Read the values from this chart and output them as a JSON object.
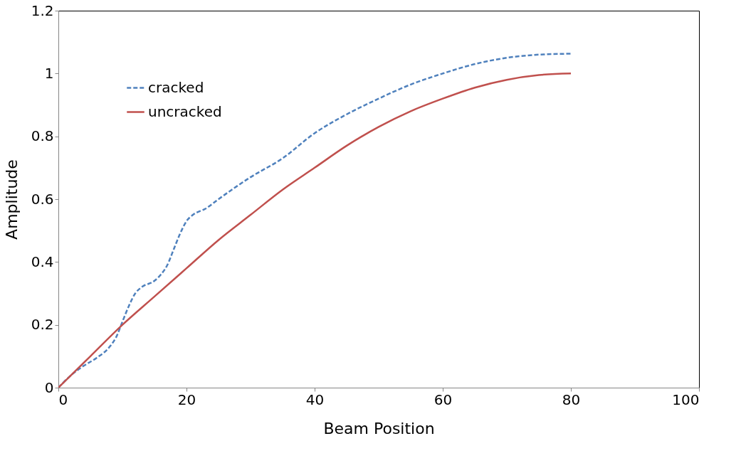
{
  "chart_data": {
    "type": "line",
    "xlabel": "Beam Position",
    "ylabel": "Amplitude",
    "xlim": [
      0,
      100
    ],
    "xticks": [
      0,
      20,
      40,
      60,
      80,
      100
    ],
    "ylim": [
      0,
      1.2
    ],
    "yticks": [
      {
        "value": 0,
        "label": "0"
      },
      0.2,
      0.4,
      0.6,
      0.8,
      {
        "value": 1,
        "label": "1"
      },
      1.2
    ],
    "grid": false,
    "legend": "top left",
    "marker": "none",
    "series": [
      {
        "name": "cracked",
        "color": "#4f81bd",
        "line_style": "dashed",
        "x": [
          0,
          2,
          4,
          6,
          8,
          9,
          10,
          11,
          12,
          13,
          15,
          16,
          17,
          18,
          19,
          20,
          21,
          23,
          25,
          30,
          35,
          40,
          45,
          50,
          55,
          60,
          65,
          70,
          75,
          80
        ],
        "values": [
          0,
          0.04,
          0.07,
          0.095,
          0.13,
          0.16,
          0.21,
          0.26,
          0.3,
          0.32,
          0.34,
          0.36,
          0.39,
          0.44,
          0.49,
          0.53,
          0.55,
          0.57,
          0.6,
          0.67,
          0.73,
          0.81,
          0.87,
          0.92,
          0.965,
          1.0,
          1.03,
          1.05,
          1.06,
          1.063
        ]
      },
      {
        "name": "uncracked",
        "color": "#c0504d",
        "line_style": "solid",
        "x": [
          0,
          5,
          10,
          15,
          20,
          25,
          30,
          35,
          40,
          45,
          50,
          55,
          60,
          65,
          70,
          75,
          80
        ],
        "values": [
          0,
          0.1,
          0.2,
          0.29,
          0.38,
          0.47,
          0.55,
          0.63,
          0.7,
          0.77,
          0.83,
          0.88,
          0.92,
          0.955,
          0.98,
          0.995,
          1.0
        ]
      }
    ]
  }
}
